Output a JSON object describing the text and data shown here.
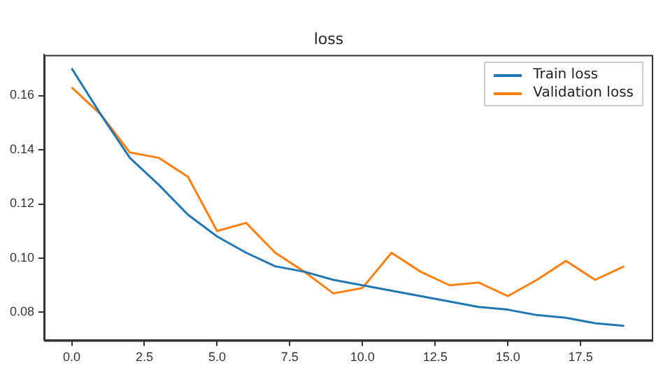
{
  "chart_data": {
    "type": "line",
    "title": "loss",
    "x": [
      0,
      1,
      2,
      3,
      4,
      5,
      6,
      7,
      8,
      9,
      10,
      11,
      12,
      13,
      14,
      15,
      16,
      17,
      18,
      19
    ],
    "series": [
      {
        "name": "Train loss",
        "color": "#1f77b4",
        "values": [
          0.17,
          0.153,
          0.137,
          0.127,
          0.116,
          0.108,
          0.102,
          0.097,
          0.095,
          0.092,
          0.09,
          0.088,
          0.086,
          0.084,
          0.082,
          0.081,
          0.079,
          0.078,
          0.076,
          0.075
        ]
      },
      {
        "name": "Validation loss",
        "color": "#ff7f0e",
        "values": [
          0.163,
          0.153,
          0.139,
          0.137,
          0.13,
          0.11,
          0.113,
          0.102,
          0.095,
          0.087,
          0.089,
          0.102,
          0.095,
          0.09,
          0.091,
          0.086,
          0.092,
          0.099,
          0.092,
          0.097
        ]
      }
    ],
    "xlim": [
      -0.95,
      19.95
    ],
    "ylim": [
      0.0697,
      0.175
    ],
    "xticks": [
      {
        "value": 0,
        "label": "0.0"
      },
      {
        "value": 2.5,
        "label": "2.5"
      },
      {
        "value": 5,
        "label": "5.0"
      },
      {
        "value": 7.5,
        "label": "7.5"
      },
      {
        "value": 10,
        "label": "10.0"
      },
      {
        "value": 12.5,
        "label": "12.5"
      },
      {
        "value": 15,
        "label": "15.0"
      },
      {
        "value": 17.5,
        "label": "17.5"
      }
    ],
    "yticks": [
      0.08,
      {
        "value": 0.1,
        "label": "0.10"
      },
      0.12,
      0.14,
      0.16
    ],
    "legend": "top right",
    "grid": false,
    "marker": "none",
    "line_style": "solid"
  }
}
